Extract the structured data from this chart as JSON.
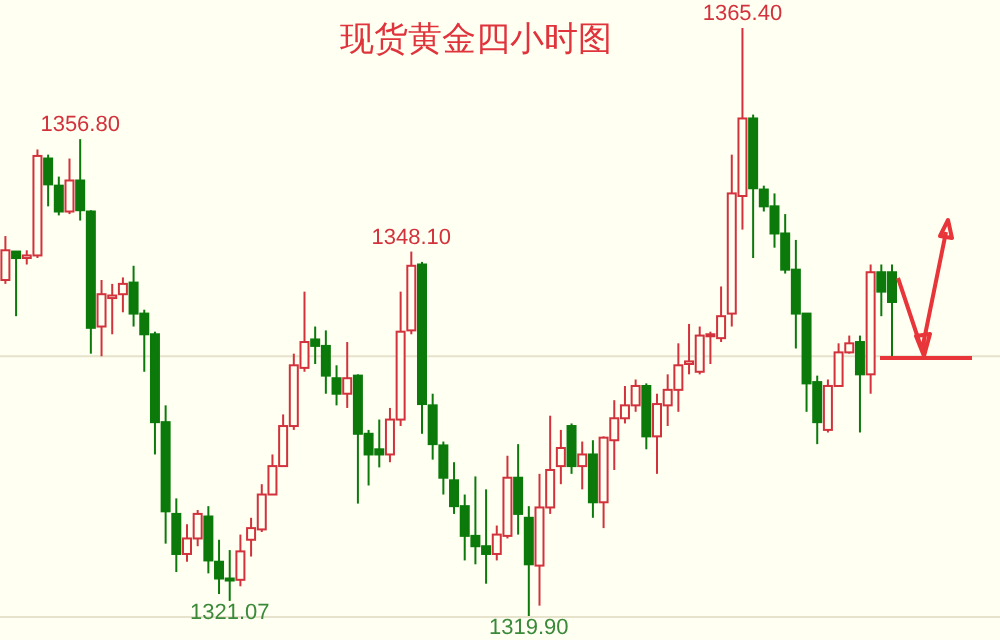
{
  "chart_data": {
    "type": "candlestick",
    "title": "现货黄金四小时图",
    "categories": [
      null,
      null,
      null,
      null,
      null,
      null,
      null,
      null,
      null,
      null,
      null,
      null,
      null,
      null,
      null,
      null,
      null,
      null,
      null,
      null,
      null,
      null,
      null,
      null,
      null,
      null,
      null,
      null,
      null,
      null,
      null,
      null,
      null,
      null,
      null,
      null,
      null,
      null,
      null,
      null,
      null,
      null,
      null,
      null,
      null,
      null,
      null,
      null,
      null,
      null,
      null,
      null,
      null,
      null,
      null,
      null,
      null,
      null,
      null,
      null,
      null,
      null,
      null,
      null,
      null,
      null,
      null,
      null,
      null,
      null,
      null,
      null,
      null,
      null,
      null,
      null,
      null,
      null,
      null,
      null,
      null,
      null,
      null,
      null
    ],
    "ohlc": [
      [
        1345.9,
        1349.3,
        1345.6,
        1348.2
      ],
      [
        1348.1,
        1348.1,
        1343.1,
        1347.6
      ],
      [
        1347.6,
        1348.2,
        1347.1,
        1347.8
      ],
      [
        1347.8,
        1356.0,
        1347.6,
        1355.5
      ],
      [
        1355.3,
        1355.6,
        1351.6,
        1353.3
      ],
      [
        1353.2,
        1353.9,
        1350.9,
        1351.2
      ],
      [
        1351.2,
        1355.3,
        1351.0,
        1353.6
      ],
      [
        1353.6,
        1356.8,
        1350.5,
        1351.3
      ],
      [
        1351.2,
        1351.3,
        1340.2,
        1342.2
      ],
      [
        1342.3,
        1345.9,
        1340.0,
        1344.8
      ],
      [
        1344.5,
        1345.6,
        1341.7,
        1344.7
      ],
      [
        1344.8,
        1346.1,
        1343.4,
        1345.6
      ],
      [
        1345.7,
        1347.0,
        1342.3,
        1343.3
      ],
      [
        1343.3,
        1343.6,
        1338.8,
        1341.7
      ],
      [
        1341.7,
        1341.9,
        1332.4,
        1334.9
      ],
      [
        1334.9,
        1336.2,
        1325.5,
        1328.0
      ],
      [
        1327.8,
        1329.0,
        1323.3,
        1324.7
      ],
      [
        1324.7,
        1327.0,
        1324.1,
        1325.9
      ],
      [
        1325.9,
        1328.1,
        1325.3,
        1327.8
      ],
      [
        1327.6,
        1328.4,
        1323.2,
        1324.2
      ],
      [
        1324.1,
        1325.8,
        1321.6,
        1322.8
      ],
      [
        1322.8,
        1325.0,
        1321.07,
        1322.7
      ],
      [
        1322.7,
        1326.2,
        1322.2,
        1324.9
      ],
      [
        1325.8,
        1327.5,
        1324.5,
        1326.7
      ],
      [
        1326.6,
        1330.1,
        1326.4,
        1329.3
      ],
      [
        1329.3,
        1332.4,
        1329.3,
        1331.5
      ],
      [
        1331.5,
        1335.5,
        1331.5,
        1334.6
      ],
      [
        1334.6,
        1340.2,
        1334.3,
        1339.3
      ],
      [
        1339.1,
        1345.0,
        1338.8,
        1341.1
      ],
      [
        1341.3,
        1342.3,
        1339.4,
        1340.8
      ],
      [
        1340.8,
        1342.0,
        1337.1,
        1338.5
      ],
      [
        1338.3,
        1339.3,
        1336.2,
        1337.1
      ],
      [
        1337.1,
        1341.1,
        1336.0,
        1338.3
      ],
      [
        1338.5,
        1338.6,
        1328.6,
        1334.0
      ],
      [
        1334.0,
        1334.3,
        1330.0,
        1332.4
      ],
      [
        1332.8,
        1335.1,
        1331.4,
        1332.4
      ],
      [
        1332.4,
        1336.0,
        1331.8,
        1335.1
      ],
      [
        1335.1,
        1345.0,
        1334.6,
        1341.9
      ],
      [
        1342.0,
        1348.1,
        1341.7,
        1347.0
      ],
      [
        1347.1,
        1347.3,
        1334.0,
        1336.3
      ],
      [
        1336.2,
        1337.1,
        1332.0,
        1333.2
      ],
      [
        1333.1,
        1333.4,
        1329.3,
        1330.6
      ],
      [
        1330.4,
        1331.8,
        1327.8,
        1328.4
      ],
      [
        1328.4,
        1329.3,
        1324.2,
        1326.1
      ],
      [
        1326.1,
        1330.7,
        1323.9,
        1325.3
      ],
      [
        1325.3,
        1329.7,
        1322.4,
        1324.7
      ],
      [
        1324.7,
        1326.9,
        1324.2,
        1326.2
      ],
      [
        1326.1,
        1332.3,
        1325.9,
        1330.6
      ],
      [
        1330.6,
        1333.2,
        1326.2,
        1327.8
      ],
      [
        1327.5,
        1328.4,
        1319.9,
        1323.9
      ],
      [
        1323.8,
        1330.9,
        1320.7,
        1328.3
      ],
      [
        1328.3,
        1335.4,
        1327.8,
        1331.2
      ],
      [
        1331.5,
        1334.3,
        1330.1,
        1332.9
      ],
      [
        1334.6,
        1334.8,
        1330.9,
        1331.5
      ],
      [
        1331.5,
        1333.4,
        1329.7,
        1332.4
      ],
      [
        1332.4,
        1333.5,
        1327.5,
        1328.7
      ],
      [
        1328.7,
        1333.8,
        1326.7,
        1333.7
      ],
      [
        1333.5,
        1336.6,
        1331.2,
        1335.2
      ],
      [
        1335.2,
        1337.7,
        1334.8,
        1336.2
      ],
      [
        1336.2,
        1338.2,
        1335.7,
        1337.7
      ],
      [
        1337.7,
        1337.9,
        1332.8,
        1333.8
      ],
      [
        1333.8,
        1337.1,
        1330.9,
        1336.3
      ],
      [
        1336.2,
        1338.6,
        1334.6,
        1337.4
      ],
      [
        1337.4,
        1341.0,
        1335.7,
        1339.3
      ],
      [
        1339.4,
        1342.5,
        1338.6,
        1339.6
      ],
      [
        1338.8,
        1342.3,
        1338.6,
        1341.6
      ],
      [
        1341.6,
        1341.9,
        1339.4,
        1341.7
      ],
      [
        1341.4,
        1345.4,
        1341.1,
        1343.1
      ],
      [
        1343.3,
        1355.6,
        1342.3,
        1352.6
      ],
      [
        1352.4,
        1365.4,
        1349.8,
        1358.4
      ],
      [
        1358.4,
        1358.7,
        1347.6,
        1353.0
      ],
      [
        1352.9,
        1353.2,
        1351.2,
        1351.6
      ],
      [
        1351.6,
        1352.6,
        1348.4,
        1349.5
      ],
      [
        1349.5,
        1351.0,
        1346.4,
        1346.7
      ],
      [
        1346.7,
        1349.0,
        1340.6,
        1343.3
      ],
      [
        1343.3,
        1343.3,
        1335.7,
        1337.9
      ],
      [
        1338.0,
        1338.5,
        1333.2,
        1334.9
      ],
      [
        1334.3,
        1338.2,
        1334.1,
        1337.7
      ],
      [
        1337.7,
        1341.0,
        1337.7,
        1340.3
      ],
      [
        1340.3,
        1341.6,
        1340.2,
        1341.0
      ],
      [
        1341.1,
        1341.6,
        1334.1,
        1338.6
      ],
      [
        1338.6,
        1347.1,
        1337.1,
        1346.5
      ],
      [
        1346.5,
        1347.1,
        1343.1,
        1345.0
      ],
      [
        1346.5,
        1347.1,
        1340.0,
        1344.2
      ]
    ],
    "ref_lines": [
      {
        "axis": "y",
        "value": 1340.0,
        "color": "#e6e2cc"
      }
    ],
    "annotations": [
      {
        "text": "1356.80",
        "y": 1356.8
      },
      {
        "text": "1348.10",
        "y": 1348.1
      },
      {
        "text": "1365.40",
        "y": 1365.4
      },
      {
        "text": "1321.07",
        "y": 1321.07
      },
      {
        "text": "1319.90",
        "y": 1319.9
      }
    ]
  }
}
